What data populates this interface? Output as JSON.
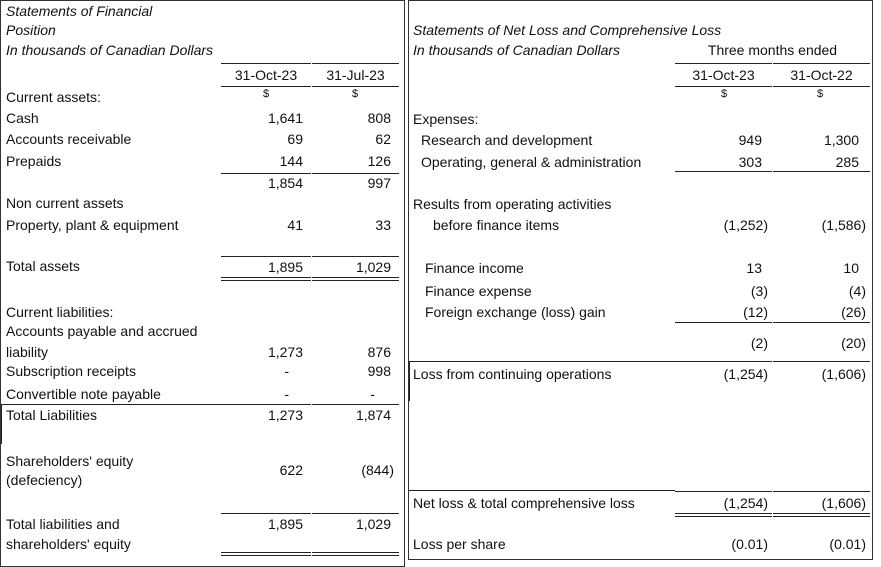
{
  "left": {
    "title_line1": "Statements of Financial",
    "title_line2": "Position",
    "units": "In thousands of Canadian Dollars",
    "col1": "31-Oct-23",
    "col2": "31-Jul-23",
    "currency1": "$",
    "currency2": "$",
    "rows": [
      {
        "label": "Current assets:",
        "v1": "",
        "v2": ""
      },
      {
        "label": "Cash",
        "v1": "1,641",
        "v2": "808"
      },
      {
        "label": "Accounts receivable",
        "v1": "69",
        "v2": "62"
      },
      {
        "label": "Prepaids",
        "v1": "144",
        "v2": "126"
      },
      {
        "label": "",
        "v1": "1,854",
        "v2": "997"
      },
      {
        "label": "Non current assets",
        "v1": "",
        "v2": ""
      },
      {
        "label": "Property, plant & equipment",
        "v1": "41",
        "v2": "33"
      },
      {
        "label": "Total assets",
        "v1": "1,895",
        "v2": "1,029"
      },
      {
        "label": "Current liabilities:",
        "v1": "",
        "v2": ""
      },
      {
        "label": "Accounts payable and accrued",
        "v1": "",
        "v2": ""
      },
      {
        "label": "liability",
        "v1": "1,273",
        "v2": "876"
      },
      {
        "label": "Subscription receipts",
        "v1": "-",
        "v2": "998"
      },
      {
        "label": "Convertible note payable",
        "v1": "-",
        "v2": "-"
      },
      {
        "label": "Total Liabilities",
        "v1": "1,273",
        "v2": "1,874"
      },
      {
        "label": "Shareholders' equity",
        "v1": "",
        "v2": ""
      },
      {
        "label": "(defeciency)",
        "v1": "",
        "v2": ""
      },
      {
        "label": "Total liabilities and",
        "v1": "1,895",
        "v2": "1,029"
      },
      {
        "label": "shareholders' equity",
        "v1": "",
        "v2": ""
      }
    ],
    "equity_v1": "622",
    "equity_v2": "(844)"
  },
  "right": {
    "title": "Statements of Net Loss and Comprehensive Loss",
    "units": "In thousands of Canadian Dollars",
    "period": "Three months ended",
    "col1": "31-Oct-23",
    "col2": "31-Oct-22",
    "currency1": "$",
    "currency2": "$",
    "rows": [
      {
        "label": "Expenses:",
        "v1": "",
        "v2": ""
      },
      {
        "label": "Research and development",
        "v1": "949",
        "v2": "1,300"
      },
      {
        "label": "Operating, general & administration",
        "v1": "303",
        "v2": "285"
      },
      {
        "label": "Results from operating activities",
        "v1": "",
        "v2": ""
      },
      {
        "label": "before finance items",
        "v1": "(1,252)",
        "v2": "(1,586)"
      },
      {
        "label": "Finance income",
        "v1": "13",
        "v2": "10"
      },
      {
        "label": "Finance expense",
        "v1": "(3)",
        "v2": "(4)"
      },
      {
        "label": "Foreign exchange (loss) gain",
        "v1": "(12)",
        "v2": "(26)"
      },
      {
        "label": "",
        "v1": "(2)",
        "v2": "(20)"
      },
      {
        "label": "Loss from continuing operations",
        "v1": "(1,254)",
        "v2": "(1,606)"
      },
      {
        "label": "Net loss & total comprehensive loss",
        "v1": "(1,254)",
        "v2": "(1,606)"
      },
      {
        "label": "Loss per share",
        "v1": "(0.01)",
        "v2": "(0.01)"
      }
    ]
  }
}
